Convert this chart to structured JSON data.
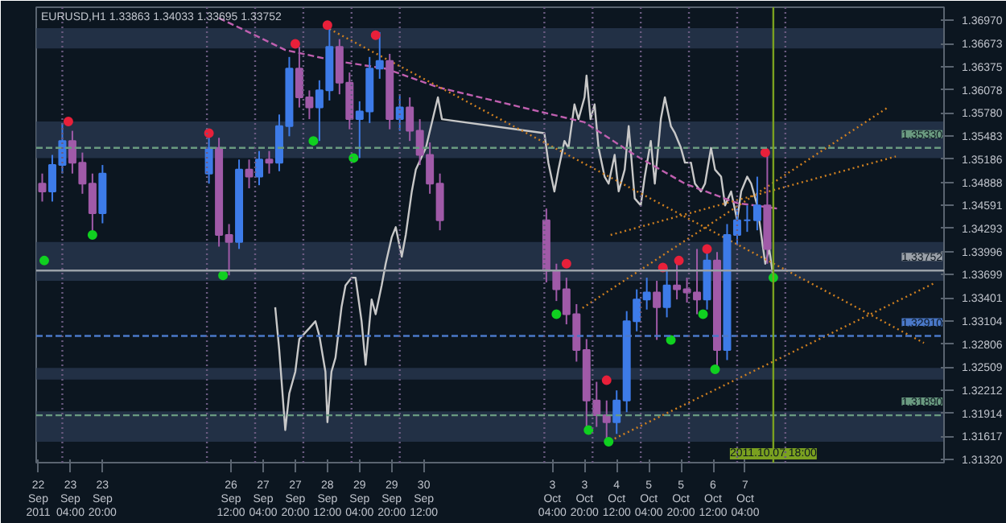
{
  "chart_data": {
    "type": "candlestick",
    "title": "EURUSD,H1  1.33863 1.34033 1.33695 1.33752",
    "x": [
      "2011-09-22T14:00",
      "2011-09-22T19:00",
      "2011-09-23T00:00",
      "2011-09-23T05:00",
      "2011-09-23T10:00",
      "2011-09-23T15:00",
      "2011-09-23T20:00",
      "2011-09-26T01:00",
      "2011-09-26T06:00",
      "2011-09-26T11:00",
      "2011-09-26T16:00",
      "2011-09-26T21:00",
      "2011-09-27T02:00",
      "2011-09-27T07:00",
      "2011-09-27T12:00",
      "2011-09-27T17:00",
      "2011-09-27T22:00",
      "2011-09-28T03:00",
      "2011-09-28T08:00",
      "2011-09-28T13:00",
      "2011-09-28T18:00",
      "2011-09-28T23:00",
      "2011-09-29T04:00",
      "2011-09-29T09:00",
      "2011-09-29T14:00",
      "2011-09-29T19:00",
      "2011-09-30T00:00",
      "2011-09-30T05:00",
      "2011-09-30T10:00",
      "2011-09-30T15:00",
      "2011-09-30T20:00",
      "2011-10-03T01:00",
      "2011-10-03T06:00",
      "2011-10-03T11:00",
      "2011-10-03T16:00",
      "2011-10-03T21:00",
      "2011-10-04T02:00",
      "2011-10-04T07:00",
      "2011-10-04T12:00",
      "2011-10-04T17:00",
      "2011-10-04T22:00",
      "2011-10-05T03:00",
      "2011-10-05T08:00",
      "2011-10-05T13:00",
      "2011-10-05T18:00",
      "2011-10-05T23:00",
      "2011-10-06T04:00",
      "2011-10-06T09:00",
      "2011-10-06T14:00",
      "2011-10-06T19:00",
      "2011-10-07T00:00",
      "2011-10-07T05:00",
      "2011-10-07T10:00",
      "2011-10-07T15:00"
    ],
    "ohlc": [
      [
        1.3487,
        1.35,
        1.3464,
        1.3477
      ],
      [
        1.3477,
        1.3524,
        1.3464,
        1.3511
      ],
      [
        1.3511,
        1.3565,
        1.35,
        1.3542
      ],
      [
        1.3542,
        1.3555,
        1.35,
        1.3514
      ],
      [
        1.3514,
        1.3527,
        1.3474,
        1.3487
      ],
      [
        1.3487,
        1.35,
        1.3421,
        1.3449
      ],
      [
        1.3449,
        1.3511,
        1.3436,
        1.35
      ],
      [
        1.35,
        1.3548,
        1.3487,
        1.3533
      ],
      [
        1.3533,
        1.3546,
        1.3406,
        1.3421
      ],
      [
        1.3421,
        1.3435,
        1.3369,
        1.3412
      ],
      [
        1.3412,
        1.3518,
        1.3403,
        1.3505
      ],
      [
        1.3505,
        1.3518,
        1.3481,
        1.3496
      ],
      [
        1.3496,
        1.3529,
        1.3485,
        1.3518
      ],
      [
        1.3518,
        1.3529,
        1.35,
        1.3514
      ],
      [
        1.3514,
        1.3576,
        1.3503,
        1.3561
      ],
      [
        1.3561,
        1.365,
        1.3548,
        1.3635
      ],
      [
        1.3635,
        1.3663,
        1.3585,
        1.3598
      ],
      [
        1.3598,
        1.3607,
        1.357,
        1.3585
      ],
      [
        1.3585,
        1.362,
        1.3542,
        1.3607
      ],
      [
        1.3607,
        1.3691,
        1.3594,
        1.3663
      ],
      [
        1.3663,
        1.3673,
        1.3602,
        1.3617
      ],
      [
        1.3617,
        1.363,
        1.3557,
        1.357
      ],
      [
        1.357,
        1.3593,
        1.352,
        1.358
      ],
      [
        1.358,
        1.365,
        1.3565,
        1.3635
      ],
      [
        1.3635,
        1.3682,
        1.3622,
        1.3645
      ],
      [
        1.3645,
        1.3654,
        1.3557,
        1.357
      ],
      [
        1.357,
        1.36,
        1.3555,
        1.3585
      ],
      [
        1.3585,
        1.3598,
        1.3542,
        1.3555
      ],
      [
        1.3555,
        1.357,
        1.3511,
        1.3524
      ],
      [
        1.3524,
        1.354,
        1.3474,
        1.3487
      ],
      [
        1.3487,
        1.35,
        1.3427,
        1.344
      ],
      [
        1.344,
        1.3455,
        1.336,
        1.3375
      ],
      [
        1.3375,
        1.3384,
        1.3336,
        1.3351
      ],
      [
        1.3351,
        1.3366,
        1.3306,
        1.3319
      ],
      [
        1.3319,
        1.3332,
        1.3258,
        1.3273
      ],
      [
        1.3273,
        1.3287,
        1.317,
        1.3208
      ],
      [
        1.3208,
        1.3232,
        1.3174,
        1.3189
      ],
      [
        1.3189,
        1.3208,
        1.3155,
        1.318
      ],
      [
        1.318,
        1.3221,
        1.3165,
        1.3208
      ],
      [
        1.3208,
        1.3323,
        1.3193,
        1.331
      ],
      [
        1.331,
        1.3351,
        1.3297,
        1.3338
      ],
      [
        1.3338,
        1.3366,
        1.3325,
        1.3347
      ],
      [
        1.3347,
        1.3362,
        1.3286,
        1.3328
      ],
      [
        1.3328,
        1.3379,
        1.3315,
        1.3356
      ],
      [
        1.3356,
        1.3388,
        1.3338,
        1.3351
      ],
      [
        1.3351,
        1.3366,
        1.3334,
        1.3347
      ],
      [
        1.3347,
        1.3403,
        1.3319,
        1.3338
      ],
      [
        1.3338,
        1.3403,
        1.3325,
        1.3388
      ],
      [
        1.3388,
        1.3399,
        1.3248,
        1.3273
      ],
      [
        1.3273,
        1.3435,
        1.326,
        1.3421
      ],
      [
        1.3421,
        1.3455,
        1.3408,
        1.344
      ],
      [
        1.344,
        1.3459,
        1.3425,
        1.344
      ],
      [
        1.344,
        1.3496,
        1.3427,
        1.3459
      ],
      [
        1.3459,
        1.3527,
        1.3384,
        1.3403
      ]
    ],
    "colors": [
      "#a05aa8",
      "#3d7be8",
      "#3d7be8",
      "#a05aa8",
      "#a05aa8",
      "#a05aa8",
      "#3d7be8",
      "#3d7be8",
      "#a05aa8",
      "#a05aa8",
      "#3d7be8",
      "#a05aa8",
      "#3d7be8",
      "#a05aa8",
      "#3d7be8",
      "#3d7be8",
      "#a05aa8",
      "#a05aa8",
      "#3d7be8",
      "#3d7be8",
      "#a05aa8",
      "#a05aa8",
      "#3d7be8",
      "#3d7be8",
      "#3d7be8",
      "#a05aa8",
      "#3d7be8",
      "#a05aa8",
      "#a05aa8",
      "#a05aa8",
      "#a05aa8",
      "#a05aa8",
      "#a05aa8",
      "#a05aa8",
      "#a05aa8",
      "#a05aa8",
      "#a05aa8",
      "#a05aa8",
      "#3d7be8",
      "#3d7be8",
      "#3d7be8",
      "#3d7be8",
      "#a05aa8",
      "#3d7be8",
      "#a05aa8",
      "#a05aa8",
      "#a05aa8",
      "#3d7be8",
      "#a05aa8",
      "#3d7be8",
      "#3d7be8",
      "#3d7be8",
      "#3d7be8",
      "#a05aa8"
    ],
    "series": [
      {
        "type": "line",
        "color": "#c8c8c8",
        "line_style": "solid",
        "x": [
          "2011-09-27T10:00",
          "2011-09-27T12:00",
          "2011-09-27T15:00",
          "2011-09-27T17:00",
          "2011-09-27T20:00",
          "2011-09-27T22:00",
          "2011-09-28T03:00",
          "2011-09-28T06:00",
          "2011-09-28T08:00",
          "2011-09-28T11:00",
          "2011-09-28T12:00",
          "2011-09-28T14:00",
          "2011-09-28T16:00",
          "2011-09-28T19:00",
          "2011-09-28T21:00",
          "2011-09-29T00:00",
          "2011-09-29T02:00",
          "2011-09-29T05:00",
          "2011-09-29T07:00",
          "2011-09-29T10:00",
          "2011-09-29T12:00",
          "2011-09-29T15:00",
          "2011-09-29T17:00",
          "2011-09-29T20:00",
          "2011-09-29T22:00",
          "2011-09-30T01:00",
          "2011-09-30T03:00",
          "2011-09-30T06:00",
          "2011-09-30T08:00",
          "2011-09-30T13:00",
          "2011-09-30T19:00",
          "2011-09-30T21:00",
          "2011-10-03T00:00",
          "2011-10-03T02:00",
          "2011-10-03T05:00",
          "2011-10-03T07:00",
          "2011-10-03T10:00",
          "2011-10-03T12:00",
          "2011-10-03T15:00",
          "2011-10-03T17:00",
          "2011-10-03T20:00",
          "2011-10-03T21:00",
          "2011-10-03T23:00",
          "2011-10-04T01:00",
          "2011-10-04T03:00",
          "2011-10-04T06:00",
          "2011-10-04T08:00",
          "2011-10-04T11:00",
          "2011-10-04T13:00",
          "2011-10-04T16:00",
          "2011-10-04T18:00",
          "2011-10-04T21:00",
          "2011-10-05T00:00",
          "2011-10-05T02:00",
          "2011-10-05T05:00",
          "2011-10-05T07:00",
          "2011-10-05T10:00",
          "2011-10-05T12:00",
          "2011-10-05T15:00",
          "2011-10-05T17:00",
          "2011-10-05T20:00",
          "2011-10-05T22:00",
          "2011-10-06T01:00",
          "2011-10-06T03:00",
          "2011-10-06T06:00",
          "2011-10-06T08:00",
          "2011-10-06T11:00",
          "2011-10-06T13:00",
          "2011-10-06T16:00",
          "2011-10-06T18:00",
          "2011-10-06T21:00",
          "2011-10-07T00:00",
          "2011-10-07T02:00",
          "2011-10-07T05:00",
          "2011-10-07T07:00",
          "2011-10-07T10:00",
          "2011-10-07T12:00",
          "2011-10-07T14:00",
          "2011-10-07T16:00",
          "2011-10-07T18:00"
        ],
        "values": [
          1.3328,
          1.3273,
          1.317,
          1.3217,
          1.3245,
          1.3287,
          1.3301,
          1.331,
          1.3291,
          1.3245,
          1.318,
          1.3245,
          1.3263,
          1.3328,
          1.3356,
          1.3366,
          1.3366,
          1.331,
          1.3254,
          1.3338,
          1.3319,
          1.3356,
          1.3384,
          1.3418,
          1.3431,
          1.3393,
          1.3421,
          1.3477,
          1.3505,
          1.3533,
          1.3598,
          1.357,
          1.3552,
          1.3514,
          1.3477,
          1.3505,
          1.3542,
          1.3533,
          1.3589,
          1.357,
          1.3598,
          1.3626,
          1.357,
          1.3589,
          1.3533,
          1.3496,
          1.3487,
          1.3524,
          1.3477,
          1.3505,
          1.3561,
          1.3468,
          1.3459,
          1.3496,
          1.3542,
          1.3487,
          1.357,
          1.3598,
          1.3561,
          1.3552,
          1.3533,
          1.3514,
          1.3514,
          1.3487,
          1.3477,
          1.3487,
          1.3533,
          1.3505,
          1.3496,
          1.3459,
          1.3477,
          1.344,
          1.3477,
          1.3496,
          1.3487,
          1.3459,
          1.3421,
          1.3384,
          1.3403,
          1.3366
        ]
      },
      {
        "type": "line",
        "color": "#c060b0",
        "line_style": "dashed",
        "x": [
          "2011-09-26T06:00",
          "2011-09-27T00:00",
          "2011-09-27T15:00",
          "2011-09-28T16:00",
          "2011-09-29T17:00",
          "2011-09-30T19:00",
          "2011-10-03T20:00",
          "2011-10-04T21:00",
          "2011-10-05T22:00",
          "2011-10-07T00:00",
          "2011-10-07T20:00"
        ],
        "values": [
          1.37,
          1.3678,
          1.3659,
          1.3645,
          1.3635,
          1.3611,
          1.3566,
          1.3524,
          1.3487,
          1.3462,
          1.3455
        ]
      },
      {
        "type": "line",
        "color": "#d08020",
        "line_style": "dotted",
        "x": [
          "2011-09-28T13:00",
          "2011-10-10T21:00"
        ],
        "values": [
          1.3686,
          1.3282
        ]
      },
      {
        "type": "line",
        "color": "#d08020",
        "line_style": "dotted",
        "x": [
          "2011-10-03T19:00",
          "2011-10-10T03:00"
        ],
        "values": [
          1.3327,
          1.3585
        ]
      },
      {
        "type": "line",
        "color": "#d08020",
        "line_style": "dotted",
        "x": [
          "2011-10-04T09:00",
          "2011-10-10T07:00"
        ],
        "values": [
          1.3421,
          1.3522
        ]
      },
      {
        "type": "line",
        "color": "#d08020",
        "line_style": "dotted",
        "x": [
          "2011-10-04T11:00",
          "2011-10-11T03:00"
        ],
        "values": [
          1.3159,
          1.336
        ]
      },
      {
        "type": "scatter",
        "color": "#e8203a",
        "marker": "circle",
        "x": [
          "2011-09-23T03:00",
          "2011-09-26T01:00",
          "2011-09-27T20:00",
          "2011-09-28T12:00",
          "2011-09-29T12:00",
          "2011-10-03T11:00",
          "2011-10-04T07:00",
          "2011-10-05T11:00",
          "2011-10-05T19:00",
          "2011-10-06T09:00",
          "2011-10-07T14:00"
        ],
        "values": [
          1.3567,
          1.3552,
          1.3667,
          1.3691,
          1.3678,
          1.3384,
          1.3234,
          1.3379,
          1.3388,
          1.3403,
          1.3527
        ]
      },
      {
        "type": "scatter",
        "color": "#10d020",
        "marker": "circle",
        "x": [
          "2011-09-22T15:00",
          "2011-09-23T15:00",
          "2011-09-26T08:00",
          "2011-09-28T05:00",
          "2011-09-29T01:00",
          "2011-10-03T06:00",
          "2011-10-03T22:00",
          "2011-10-04T08:00",
          "2011-10-05T15:00",
          "2011-10-06T07:00",
          "2011-10-06T13:00",
          "2011-10-07T18:00"
        ],
        "values": [
          1.3388,
          1.3421,
          1.3369,
          1.3542,
          1.352,
          1.3319,
          1.317,
          1.3155,
          1.3286,
          1.3319,
          1.3248,
          1.3366
        ]
      }
    ],
    "ref_lines": [
      {
        "axis": "y",
        "value": 1.3533,
        "label": "1.35330",
        "color": "#6a9a80",
        "line_style": "dashed"
      },
      {
        "axis": "y",
        "value": 1.33752,
        "label": "1.33752",
        "color": "#9aa0a8",
        "line_style": "solid"
      },
      {
        "axis": "y",
        "value": 1.3291,
        "label": "1.32910",
        "color": "#4a78c8",
        "line_style": "dashed"
      },
      {
        "axis": "y",
        "value": 1.3189,
        "label": "1.31890",
        "color": "#6a9a80",
        "line_style": "dashed"
      },
      {
        "axis": "x",
        "value": "2011-10-07T18:00",
        "label": "2011.10.07 18:00",
        "color": "#7aa020",
        "line_style": "solid"
      },
      {
        "axis": "x",
        "value": "2011-09-23T00:00",
        "color": "#6a5a80",
        "line_style": "dotted"
      },
      {
        "axis": "x",
        "value": "2011-09-26T00:00",
        "color": "#6a5a80",
        "line_style": "dotted"
      },
      {
        "axis": "x",
        "value": "2011-09-27T00:00",
        "color": "#6a5a80",
        "line_style": "dotted"
      },
      {
        "axis": "x",
        "value": "2011-09-28T00:00",
        "color": "#6a5a80",
        "line_style": "dotted"
      },
      {
        "axis": "x",
        "value": "2011-09-29T00:00",
        "color": "#6a5a80",
        "line_style": "dotted"
      },
      {
        "axis": "x",
        "value": "2011-09-30T00:00",
        "color": "#6a5a80",
        "line_style": "dotted"
      },
      {
        "axis": "x",
        "value": "2011-10-03T00:00",
        "color": "#6a5a80",
        "line_style": "dotted"
      },
      {
        "axis": "x",
        "value": "2011-10-04T00:00",
        "color": "#6a5a80",
        "line_style": "dotted"
      },
      {
        "axis": "x",
        "value": "2011-10-05T00:00",
        "color": "#6a5a80",
        "line_style": "dotted"
      },
      {
        "axis": "x",
        "value": "2011-10-06T00:00",
        "color": "#6a5a80",
        "line_style": "dotted"
      },
      {
        "axis": "x",
        "value": "2011-10-07T00:00",
        "color": "#6a5a80",
        "line_style": "dotted"
      },
      {
        "axis": "x",
        "value": "2011-10-08T00:00",
        "color": "#6a5a80",
        "line_style": "dotted"
      }
    ],
    "bands": [
      {
        "axis": "y",
        "from": 1.3661,
        "to": 1.3687,
        "color": "#2a3a52"
      },
      {
        "axis": "y",
        "from": 1.352,
        "to": 1.3567,
        "color": "#2a3a52"
      },
      {
        "axis": "y",
        "from": 1.3362,
        "to": 1.3412,
        "color": "#2a3a52"
      },
      {
        "axis": "y",
        "from": 1.3235,
        "to": 1.325,
        "color": "#2a3a52"
      },
      {
        "axis": "y",
        "from": 1.3155,
        "to": 1.3194,
        "color": "#2a3a52"
      }
    ],
    "xlim": [
      "2011-09-22T11:00",
      "2011-10-11T07:00"
    ],
    "ylim": [
      1.3128,
      1.3714
    ],
    "xticks": [
      {
        "value": "2011-09-22T12:00",
        "label": "22 Sep 2011"
      },
      {
        "value": "2011-09-23T04:00",
        "label": "23 Sep 04:00"
      },
      {
        "value": "2011-09-23T20:00",
        "label": "23 Sep 20:00"
      },
      {
        "value": "2011-09-26T12:00",
        "label": "26 Sep 12:00"
      },
      {
        "value": "2011-09-27T04:00",
        "label": "27 Sep 04:00"
      },
      {
        "value": "2011-09-27T20:00",
        "label": "27 Sep 20:00"
      },
      {
        "value": "2011-09-28T12:00",
        "label": "28 Sep 12:00"
      },
      {
        "value": "2011-09-29T04:00",
        "label": "29 Sep 04:00"
      },
      {
        "value": "2011-09-29T20:00",
        "label": "29 Sep 20:00"
      },
      {
        "value": "2011-09-30T12:00",
        "label": "30 Sep 12:00"
      },
      {
        "value": "2011-10-03T04:00",
        "label": "3 Oct 04:00"
      },
      {
        "value": "2011-10-03T20:00",
        "label": "3 Oct 20:00"
      },
      {
        "value": "2011-10-04T12:00",
        "label": "4 Oct 12:00"
      },
      {
        "value": "2011-10-05T04:00",
        "label": "5 Oct 04:00"
      },
      {
        "value": "2011-10-05T20:00",
        "label": "5 Oct 20:00"
      },
      {
        "value": "2011-10-06T12:00",
        "label": "6 Oct 12:00"
      },
      {
        "value": "2011-10-07T04:00",
        "label": "7 Oct 04:00"
      }
    ],
    "yticks": [
      {
        "value": 1.3697,
        "label": "1.36970"
      },
      1.36673,
      1.36375,
      1.36078,
      {
        "value": 1.3578,
        "label": "1.35780"
      },
      1.35483,
      1.35186,
      1.34888,
      1.34591,
      1.34293,
      1.33996,
      1.33699,
      1.33401,
      1.33104,
      1.32806,
      1.32509,
      1.32212,
      1.31914,
      1.31617,
      {
        "value": 1.3132,
        "label": "1.31320"
      }
    ],
    "grid": false
  }
}
